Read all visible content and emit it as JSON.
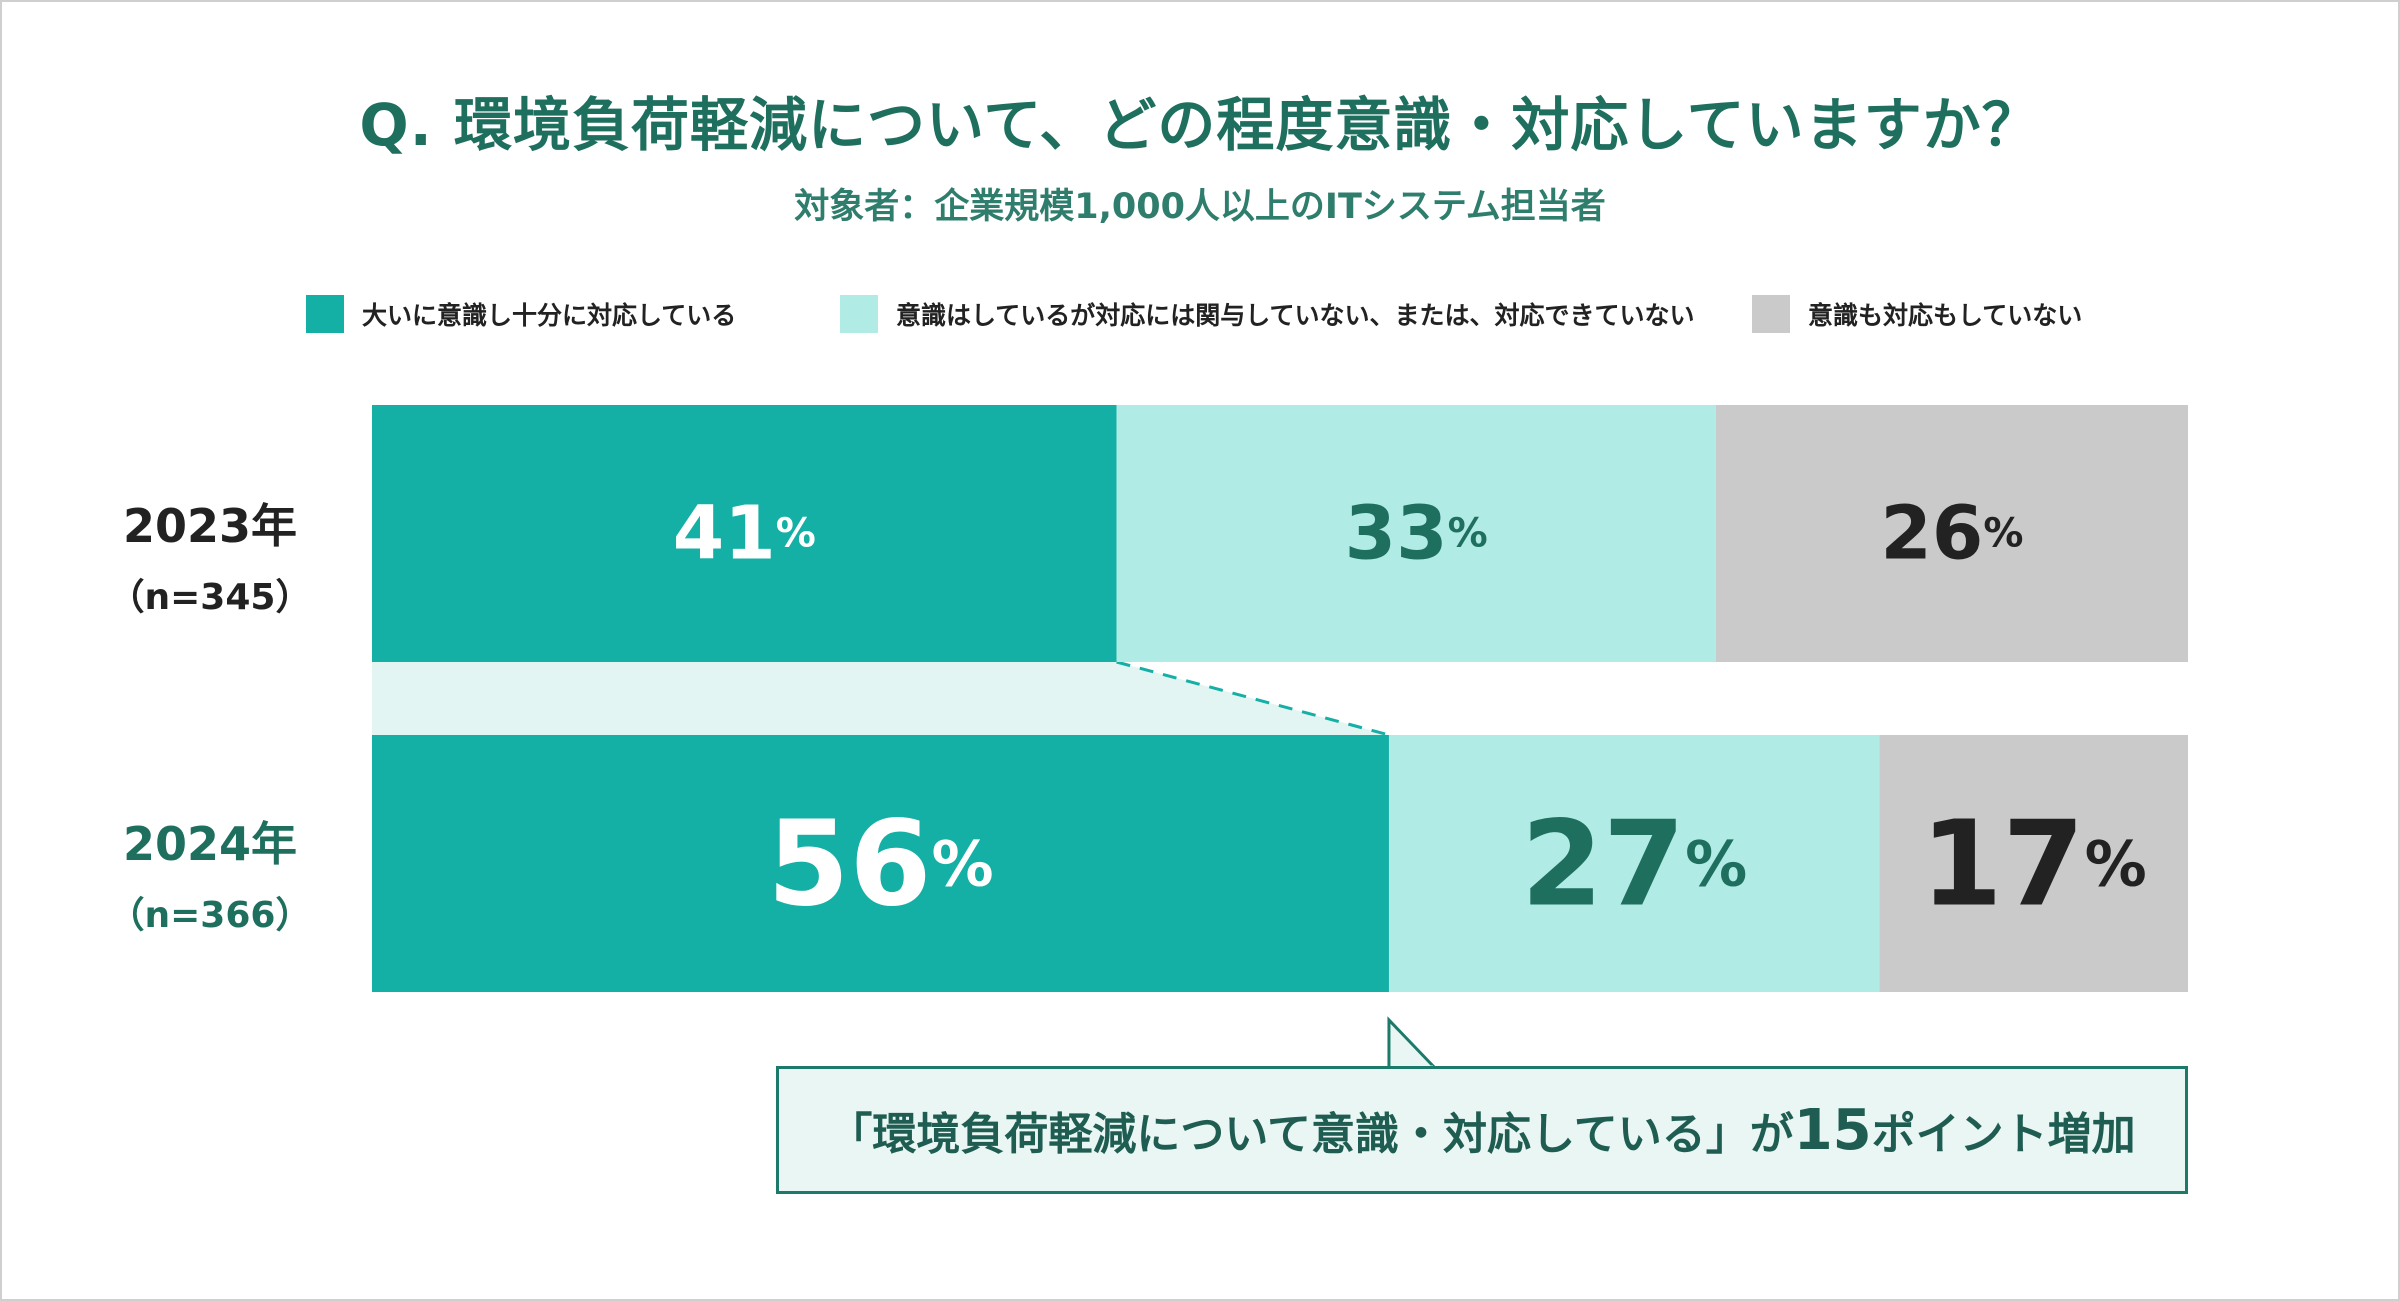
{
  "title": "Q. 環境負荷軽減について、どの程度意識・対応していますか？",
  "subtitle": "対象者：企業規模1,000人以上のITシステム担当者",
  "colors": {
    "strong": "#14afa5",
    "medium": "#b0ebe5",
    "none": "#cacaca",
    "accent_text": "#1f6f5f",
    "connector_band": "#e3f5f2",
    "callout_bg": "#e9f6f3",
    "callout_border": "#1d7a6a"
  },
  "legend": [
    {
      "label": "大いに意識し十分に対応している",
      "color": "#14afa5"
    },
    {
      "label": "意識はしているが対応には関与していない、または、対応できていない",
      "color": "#b0ebe5"
    },
    {
      "label": "意識も対応もしていない",
      "color": "#cacaca"
    }
  ],
  "rows": [
    {
      "year": "2023年",
      "n": "（n=345）"
    },
    {
      "year": "2024年",
      "n": "（n=366）"
    }
  ],
  "chart_data": {
    "type": "bar",
    "orientation": "horizontal",
    "stacked": true,
    "percent_stacked": true,
    "categories": [
      "2023年",
      "2024年"
    ],
    "series": [
      {
        "name": "大いに意識し十分に対応している",
        "values": [
          41,
          56
        ]
      },
      {
        "name": "意識はしているが対応には関与していない、または、対応できていない",
        "values": [
          33,
          27
        ]
      },
      {
        "name": "意識も対応もしていない",
        "values": [
          26,
          17
        ]
      }
    ],
    "value_suffix": "%",
    "title": "Q. 環境負荷軽減について、どの程度意識・対応していますか？",
    "xlabel": "",
    "ylabel": "",
    "xlim": [
      0,
      100
    ]
  },
  "callout": {
    "prefix": "「環境負荷軽減について意識・対応している」が",
    "number": "15",
    "suffix": "ポイント増加"
  }
}
